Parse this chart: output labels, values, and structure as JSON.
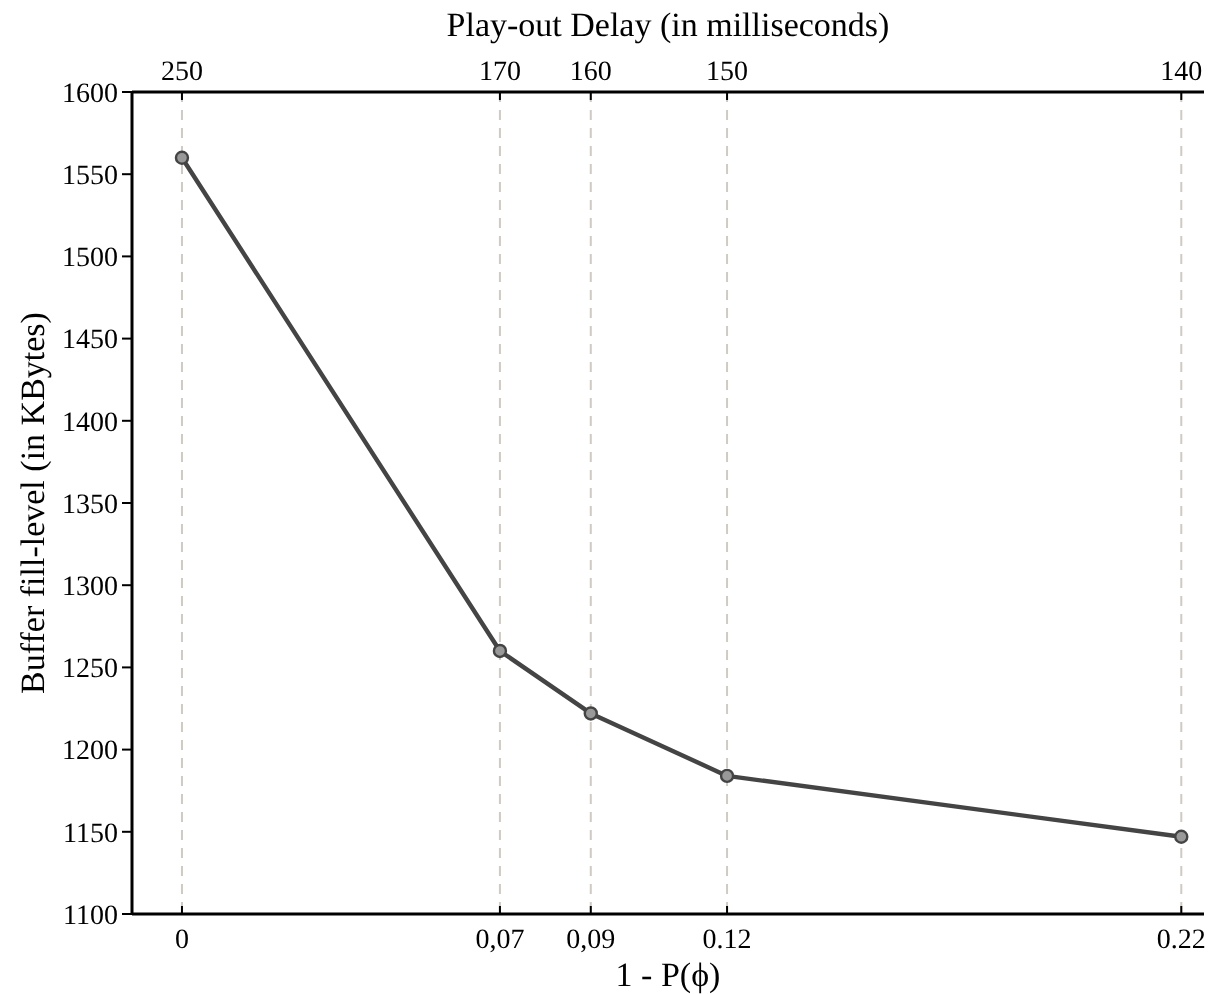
{
  "chart_data": {
    "type": "line",
    "xlabel": "1 - P(ϕ)",
    "x2label": "Play-out Delay (in milliseconds)",
    "ylabel": "Buffer fill-level (in KBytes)",
    "x": [
      0,
      0.07,
      0.09,
      0.12,
      0.22
    ],
    "series": [
      {
        "color": "#444444",
        "values": [
          1560,
          1260,
          1222,
          1184,
          1147
        ]
      }
    ],
    "xlim": [
      -0.011,
      0.225
    ],
    "xticks": [
      0,
      {
        "value": 0.07,
        "label": "0,07"
      },
      {
        "value": 0.09,
        "label": "0,09"
      },
      0.12,
      0.22
    ],
    "annotations": [
      "250",
      "170",
      "160",
      "150",
      "140"
    ],
    "ylim": [
      1100,
      1600
    ],
    "yticks": [
      1100,
      1150,
      1200,
      1250,
      1300,
      1350,
      1400,
      1450,
      1500,
      1550,
      1600
    ],
    "grid": "x",
    "marker": "circle",
    "line_style": "solid"
  }
}
